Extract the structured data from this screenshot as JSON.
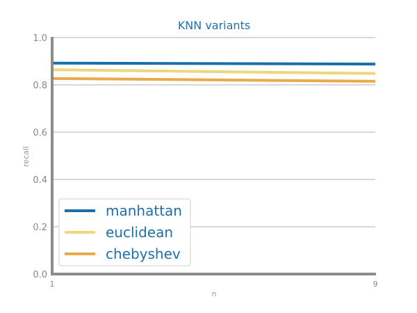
{
  "chart_data": {
    "type": "line",
    "title": "KNN variants",
    "xlabel": "n",
    "ylabel": "recall",
    "x": [
      1,
      9
    ],
    "xlim": [
      1,
      9
    ],
    "ylim": [
      0.0,
      1.0
    ],
    "x_ticks": [
      "1",
      "9"
    ],
    "y_ticks": [
      "0.0",
      "0.2",
      "0.4",
      "0.6",
      "0.8",
      "1.0"
    ],
    "y_tick_values": [
      0.0,
      0.2,
      0.4,
      0.6,
      0.8,
      1.0
    ],
    "grid": "horizontal",
    "legend_position": "bottom-left",
    "series": [
      {
        "name": "manhattan",
        "color": "#1a6fab",
        "values": [
          0.892,
          0.888
        ]
      },
      {
        "name": "euclidean",
        "color": "#ecd77c",
        "values": [
          0.864,
          0.848
        ]
      },
      {
        "name": "chebyshev",
        "color": "#eba94a",
        "values": [
          0.827,
          0.815
        ]
      }
    ]
  }
}
